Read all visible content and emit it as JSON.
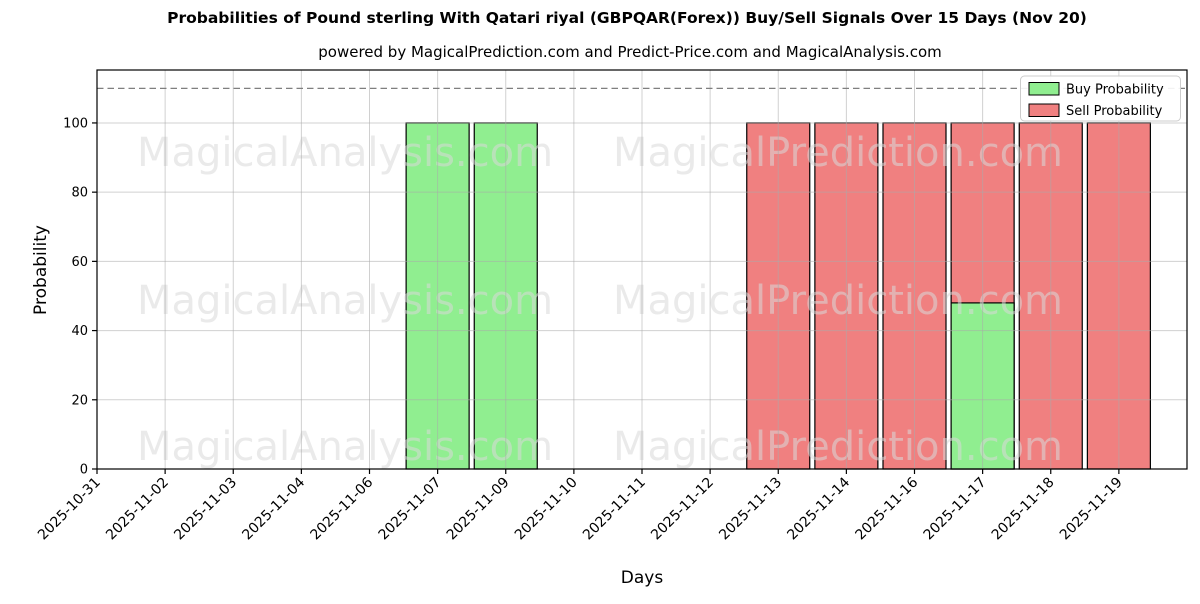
{
  "chart": {
    "title": "Probabilities of Pound sterling With Qatari riyal (GBPQAR(Forex)) Buy/Sell Signals Over 15 Days (Nov 20)",
    "subtitle": "powered by MagicalPrediction.com and Predict-Price.com and MagicalAnalysis.com",
    "xlabel": "Days",
    "ylabel": "Probability"
  },
  "chart_data": {
    "type": "bar",
    "title": "Probabilities of Pound sterling With Qatari riyal (GBPQAR(Forex)) Buy/Sell Signals Over 15 Days (Nov 20)",
    "subtitle": "powered by MagicalPrediction.com and Predict-Price.com and MagicalAnalysis.com",
    "xlabel": "Days",
    "ylabel": "Probability",
    "categories": [
      "2025-10-31",
      "2025-11-02",
      "2025-11-03",
      "2025-11-04",
      "2025-11-06",
      "2025-11-07",
      "2025-11-09",
      "2025-11-10",
      "2025-11-11",
      "2025-11-12",
      "2025-11-13",
      "2025-11-14",
      "2025-11-16",
      "2025-11-17",
      "2025-11-18",
      "2025-11-19"
    ],
    "series": [
      {
        "name": "Buy Probability",
        "color": "#90EE90",
        "values": [
          0,
          0,
          0,
          0,
          0,
          100,
          100,
          0,
          0,
          0,
          0,
          0,
          0,
          48,
          0,
          0
        ]
      },
      {
        "name": "Sell Probability",
        "color": "#F08080",
        "values": [
          0,
          0,
          0,
          0,
          0,
          0,
          0,
          0,
          0,
          0,
          100,
          100,
          100,
          100,
          100,
          100
        ]
      }
    ],
    "yticks": [
      0,
      20,
      40,
      60,
      80,
      100
    ],
    "ylim": [
      0,
      115.3
    ],
    "threshold_line": 110,
    "grid": true,
    "legend_position": "top-right",
    "bar_edge_color": "#000000",
    "grid_color": "#aaaaaa",
    "threshold_color": "#7f7f7f",
    "watermarks": [
      "MagicalAnalysis.com",
      "MagicalPrediction.com"
    ]
  }
}
